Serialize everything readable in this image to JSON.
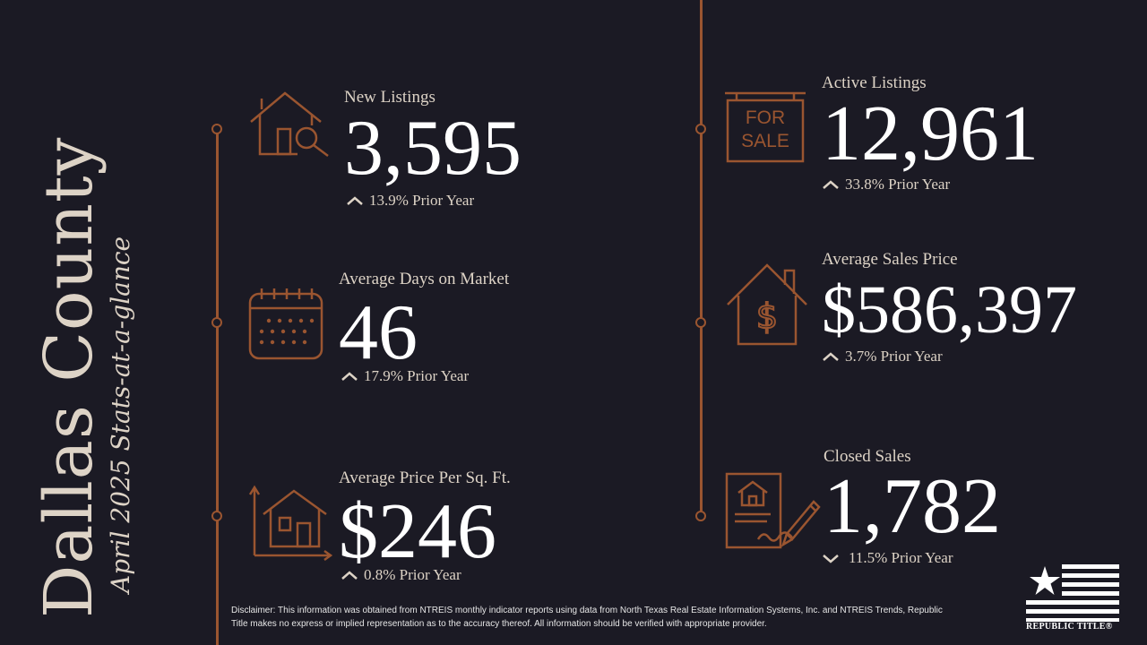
{
  "title": "Dallas County",
  "subtitle": "April 2025 Stats-at-a-glance",
  "stats": {
    "new_listings": {
      "label": "New Listings",
      "value": "3,595",
      "change": "13.9% Prior Year",
      "direction": "up",
      "icon": "house-search-icon"
    },
    "days_on_market": {
      "label": "Average Days on Market",
      "value": "46",
      "change": "17.9% Prior Year",
      "direction": "up",
      "icon": "calendar-icon"
    },
    "price_per_sqft": {
      "label": "Average Price Per Sq. Ft.",
      "value": "$246",
      "change": "0.8% Prior Year",
      "direction": "up",
      "icon": "house-dimensions-icon"
    },
    "active_listings": {
      "label": "Active Listings",
      "value": "12,961",
      "change": "33.8% Prior Year",
      "direction": "up",
      "icon": "for-sale-sign-icon",
      "sign_line1": "FOR",
      "sign_line2": "SALE"
    },
    "avg_sales_price": {
      "label": "Average Sales Price",
      "value": "$586,397",
      "change": "3.7% Prior Year",
      "direction": "up",
      "icon": "house-dollar-icon"
    },
    "closed_sales": {
      "label": "Closed Sales",
      "value": "1,782",
      "change": "11.5% Prior Year",
      "direction": "down",
      "icon": "contract-signing-icon"
    }
  },
  "disclaimer": "Disclaimer: This information was obtained from NTREIS monthly indicator reports using data from North Texas Real Estate Information Systems, Inc. and NTREIS Trends, Republic Title makes no express or implied representation as to the accuracy thereof. All information should be verified with appropriate provider.",
  "logo_text": "REPUBLIC TITLE®",
  "colors": {
    "background": "#1b1a24",
    "accent": "#9a5530",
    "text": "#ddd3c6"
  }
}
